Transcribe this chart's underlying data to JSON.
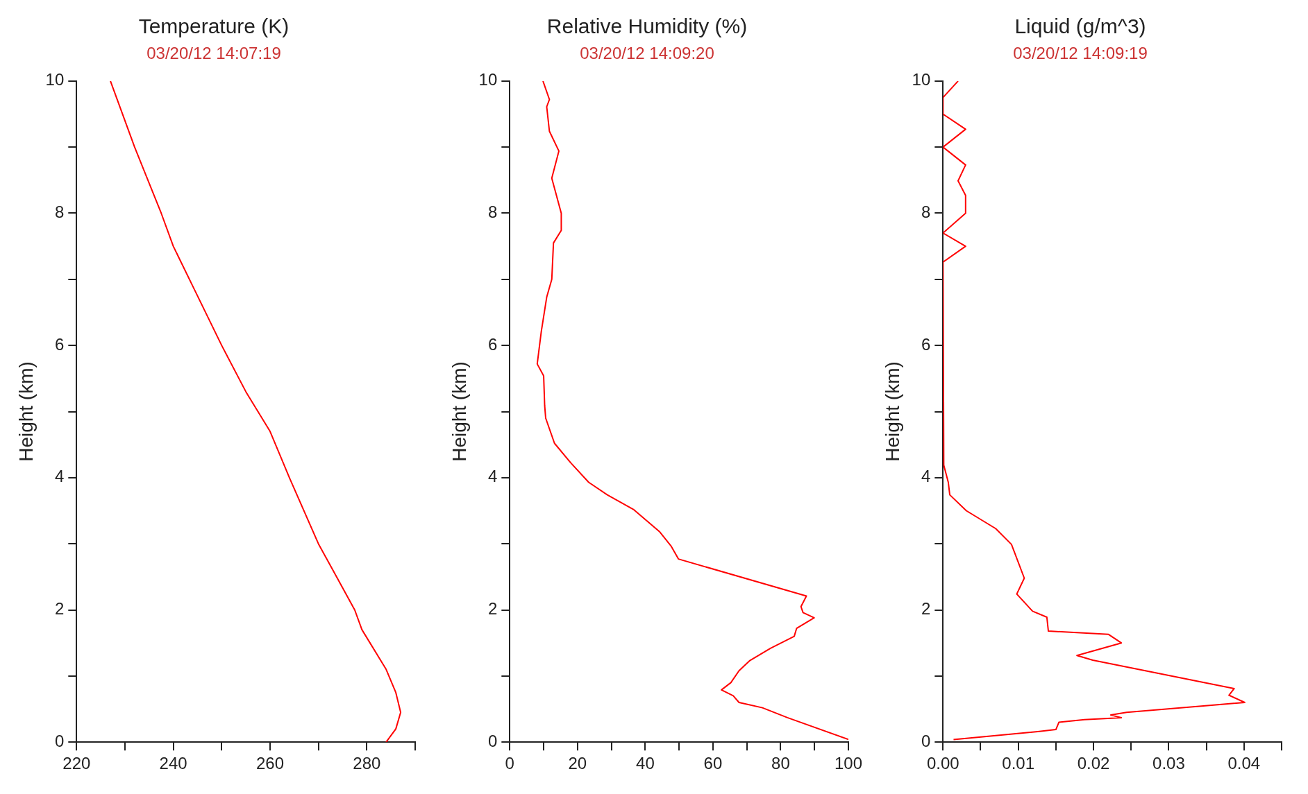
{
  "chart_data": [
    {
      "type": "line",
      "title": "Temperature (K)",
      "subtitle": "03/20/12 14:07:19",
      "ylabel": "Height (km)",
      "series": [
        {
          "color": "#ff0000",
          "x": [
            284,
            286,
            287,
            286,
            284,
            279,
            277.5,
            273,
            270,
            264,
            260,
            255,
            250,
            244,
            240,
            237.5,
            232,
            227
          ],
          "values": [
            0,
            0.2,
            0.45,
            0.75,
            1.1,
            1.7,
            2,
            2.6,
            3,
            4,
            4.7,
            5.3,
            6,
            6.9,
            7.5,
            8,
            9,
            10
          ]
        }
      ],
      "xlim": [
        220,
        290
      ],
      "xticks": [
        220,
        {
          "value": 230,
          "label": null
        },
        240,
        {
          "value": 250,
          "label": null
        },
        260,
        {
          "value": 270,
          "label": null
        },
        280,
        {
          "value": 290,
          "label": null
        }
      ],
      "ylim": [
        0,
        10
      ],
      "yticks": [
        0,
        {
          "value": 1,
          "label": null
        },
        2,
        {
          "value": 3,
          "label": null
        },
        4,
        {
          "value": 5,
          "label": null
        },
        6,
        {
          "value": 7,
          "label": null
        },
        8,
        {
          "value": 9,
          "label": null
        },
        10
      ]
    },
    {
      "type": "line",
      "title": "Relative Humidity (%)",
      "subtitle": "03/20/12 14:09:20",
      "ylabel": "Height (km)",
      "series": [
        {
          "color": "#ff0000",
          "x": [
            100,
            82,
            74.6,
            67.7,
            66,
            62.5,
            65.3,
            67.7,
            70.8,
            77,
            84,
            84.7,
            89.9,
            86.6,
            86,
            87.6,
            49.8,
            47.7,
            44.3,
            36.5,
            28.8,
            23.3,
            17.9,
            13.2,
            10.6,
            10.3,
            10,
            8.1,
            9.3,
            10.9,
            12.4,
            12.9,
            15.2,
            15.2,
            12.4,
            14.5,
            11.7,
            10.9,
            11.7,
            9.8
          ],
          "values": [
            0.04,
            0.37,
            0.52,
            0.6,
            0.7,
            0.79,
            0.9,
            1.08,
            1.23,
            1.42,
            1.6,
            1.72,
            1.88,
            1.96,
            2.05,
            2.21,
            2.77,
            2.96,
            3.18,
            3.52,
            3.74,
            3.93,
            4.23,
            4.52,
            4.9,
            5.09,
            5.54,
            5.72,
            6.21,
            6.73,
            7,
            7.55,
            7.74,
            8,
            8.53,
            8.94,
            9.24,
            9.61,
            9.72,
            10
          ]
        }
      ],
      "xlim": [
        0,
        100
      ],
      "xticks": [
        0,
        {
          "value": 10,
          "label": null
        },
        20,
        {
          "value": 30,
          "label": null
        },
        40,
        {
          "value": 50,
          "label": null
        },
        60,
        {
          "value": 70,
          "label": null
        },
        80,
        {
          "value": 90,
          "label": null
        },
        100
      ],
      "ylim": [
        0,
        10
      ],
      "yticks": [
        0,
        {
          "value": 1,
          "label": null
        },
        2,
        {
          "value": 3,
          "label": null
        },
        4,
        {
          "value": 5,
          "label": null
        },
        6,
        {
          "value": 7,
          "label": null
        },
        8,
        {
          "value": 9,
          "label": null
        },
        10
      ]
    },
    {
      "type": "line",
      "title": "Liquid (g/m^3)",
      "subtitle": "03/20/12 14:09:19",
      "ylabel": "Height (km)",
      "series": [
        {
          "color": "#ff0000",
          "x": [
            0.0014,
            0.0126,
            0.015,
            0.0154,
            0.0188,
            0.0237,
            0.0223,
            0.0244,
            0.0401,
            0.038,
            0.0387,
            0.0199,
            0.0178,
            0.0237,
            0.022,
            0.014,
            0.0138,
            0.0119,
            0.0098,
            0.0108,
            0.0091,
            0.007,
            0.0031,
            0.0009,
            0.0007,
            0.0001,
            0,
            0.003,
            0,
            0.003,
            0.003,
            0.002,
            0.003,
            0,
            0.003,
            0,
            0,
            0.002
          ],
          "values": [
            0.04,
            0.16,
            0.19,
            0.3,
            0.34,
            0.37,
            0.41,
            0.45,
            0.6,
            0.71,
            0.81,
            1.24,
            1.31,
            1.5,
            1.63,
            1.68,
            1.89,
            1.98,
            2.24,
            2.48,
            2.99,
            3.23,
            3.5,
            3.74,
            3.93,
            4.19,
            7.26,
            7.5,
            7.7,
            8,
            8.27,
            8.49,
            8.73,
            9,
            9.27,
            9.5,
            9.75,
            10
          ]
        }
      ],
      "xlim": [
        0,
        0.045
      ],
      "xticks": [
        "0.00",
        {
          "value": 0.005,
          "label": null
        },
        {
          "value": 0.01,
          "label": "0.01"
        },
        {
          "value": 0.015,
          "label": null
        },
        {
          "value": 0.02,
          "label": "0.02"
        },
        {
          "value": 0.025,
          "label": null
        },
        {
          "value": 0.03,
          "label": "0.03"
        },
        {
          "value": 0.035,
          "label": null
        },
        {
          "value": 0.04,
          "label": "0.04"
        },
        {
          "value": 0.045,
          "label": null
        }
      ],
      "ylim": [
        0,
        10
      ],
      "yticks": [
        0,
        {
          "value": 1,
          "label": null
        },
        2,
        {
          "value": 3,
          "label": null
        },
        4,
        {
          "value": 5,
          "label": null
        },
        6,
        {
          "value": 7,
          "label": null
        },
        8,
        {
          "value": 9,
          "label": null
        },
        10
      ]
    }
  ]
}
